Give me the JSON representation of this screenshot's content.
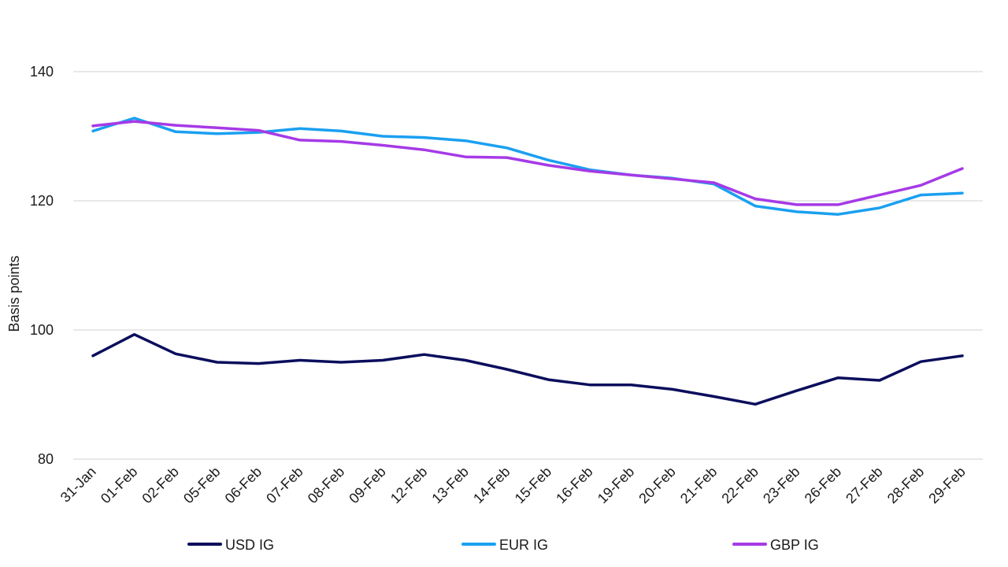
{
  "chart_data": {
    "type": "line",
    "title": "",
    "xlabel": "",
    "ylabel": "Basis points",
    "ylim": [
      80,
      140
    ],
    "yticks": [
      80,
      100,
      120,
      140
    ],
    "grid": true,
    "legend_position": "bottom",
    "categories": [
      "31-Jan",
      "01-Feb",
      "02-Feb",
      "05-Feb",
      "06-Feb",
      "07-Feb",
      "08-Feb",
      "09-Feb",
      "12-Feb",
      "13-Feb",
      "14-Feb",
      "15-Feb",
      "16-Feb",
      "19-Feb",
      "20-Feb",
      "21-Feb",
      "22-Feb",
      "23-Feb",
      "26-Feb",
      "27-Feb",
      "28-Feb",
      "29-Feb"
    ],
    "series": [
      {
        "name": "USD IG",
        "color": "#0b0e5c",
        "values": [
          96.0,
          99.3,
          96.3,
          95.0,
          94.8,
          95.3,
          95.0,
          95.3,
          96.2,
          95.3,
          93.9,
          92.3,
          91.5,
          91.5,
          90.8,
          89.7,
          88.5,
          90.6,
          92.6,
          92.2,
          95.1,
          96.0
        ]
      },
      {
        "name": "EUR IG",
        "color": "#1aa0f0",
        "values": [
          130.8,
          132.8,
          130.7,
          130.4,
          130.6,
          131.2,
          130.8,
          130.0,
          129.8,
          129.3,
          128.2,
          126.3,
          124.8,
          124.0,
          123.5,
          122.6,
          119.2,
          118.3,
          117.9,
          118.9,
          120.9,
          121.2
        ]
      },
      {
        "name": "GBP IG",
        "color": "#a63ae6",
        "values": [
          131.6,
          132.3,
          131.7,
          131.3,
          130.9,
          129.4,
          129.2,
          128.6,
          127.9,
          126.8,
          126.7,
          125.5,
          124.6,
          124.0,
          123.4,
          122.8,
          120.3,
          119.4,
          119.4,
          120.9,
          122.4,
          125.0
        ]
      }
    ]
  }
}
